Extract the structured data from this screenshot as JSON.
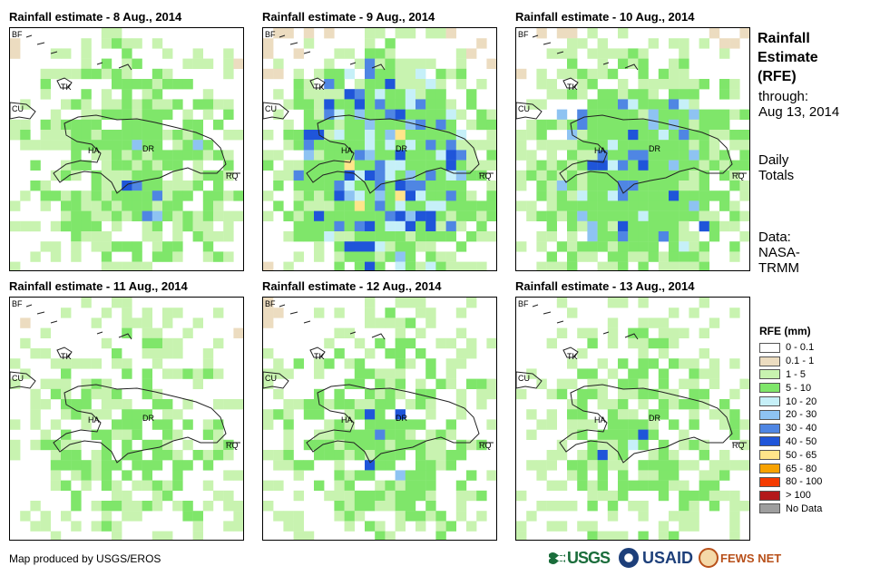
{
  "panels": [
    {
      "title": "Rainfall estimate - 8 Aug., 2014",
      "seed": 8,
      "intensity": 0.55,
      "blue": 0.18
    },
    {
      "title": "Rainfall estimate - 9 Aug., 2014",
      "seed": 9,
      "intensity": 1.0,
      "blue": 0.55
    },
    {
      "title": "Rainfall estimate - 10 Aug., 2014",
      "seed": 10,
      "intensity": 0.85,
      "blue": 0.4
    },
    {
      "title": "Rainfall estimate - 11 Aug., 2014",
      "seed": 11,
      "intensity": 0.35,
      "blue": 0.1
    },
    {
      "title": "Rainfall estimate - 12 Aug., 2014",
      "seed": 12,
      "intensity": 0.45,
      "blue": 0.15
    },
    {
      "title": "Rainfall estimate - 13 Aug., 2014",
      "seed": 13,
      "intensity": 0.4,
      "blue": 0.12
    }
  ],
  "map_labels": {
    "bf": "BF",
    "tk": "TK",
    "cu": "CU",
    "ha": "HA",
    "dr": "DR",
    "rq": "RQ"
  },
  "side": {
    "title_line1": "Rainfall",
    "title_line2": "Estimate",
    "title_line3": "(RFE)",
    "through_line1": "through:",
    "through_line2": "Aug 13, 2014",
    "daily_line1": "Daily",
    "daily_line2": "Totals",
    "data_line1": "Data:",
    "data_line2": "NASA-",
    "data_line3": "TRMM"
  },
  "legend": {
    "title": "RFE (mm)",
    "items": [
      {
        "label": "0 - 0.1",
        "color": "#ffffff"
      },
      {
        "label": "0.1 - 1",
        "color": "#ecdcc0"
      },
      {
        "label": "1 - 5",
        "color": "#c8f3b0"
      },
      {
        "label": "5 - 10",
        "color": "#7fe66a"
      },
      {
        "label": "10 - 20",
        "color": "#c6f0f8"
      },
      {
        "label": "20 - 30",
        "color": "#8ec3f2"
      },
      {
        "label": "30 - 40",
        "color": "#4f86e3"
      },
      {
        "label": "40 - 50",
        "color": "#1f55d9"
      },
      {
        "label": "50 - 65",
        "color": "#ffe58a"
      },
      {
        "label": "65 - 80",
        "color": "#f8a200"
      },
      {
        "label": "80 - 100",
        "color": "#f53b00"
      },
      {
        "label": "> 100",
        "color": "#b3191b"
      },
      {
        "label": "No Data",
        "color": "#9e9e9e"
      }
    ]
  },
  "credit": "Map produced by USGS/EROS",
  "logos": {
    "usgs": "USGS",
    "usaid": "USAID",
    "fews": "FEWS NET"
  }
}
